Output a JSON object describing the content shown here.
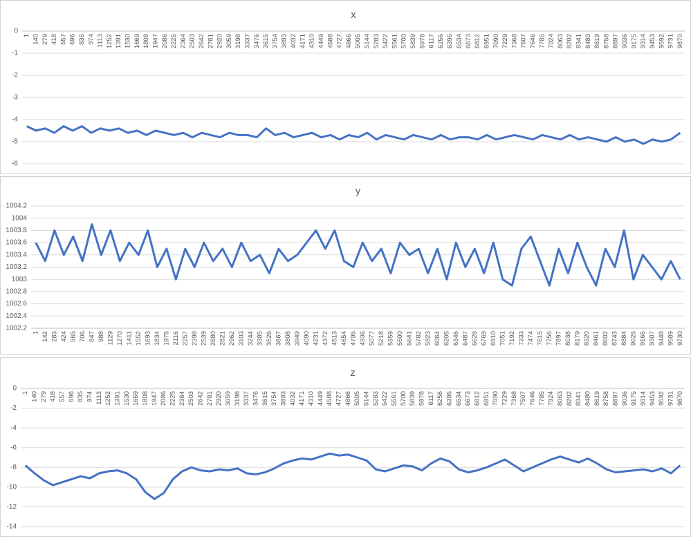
{
  "chart_data": [
    {
      "type": "line",
      "title": "x",
      "categories": [
        1,
        140,
        279,
        418,
        557,
        696,
        835,
        974,
        1113,
        1252,
        1391,
        1530,
        1669,
        1808,
        1947,
        2086,
        2225,
        2364,
        2503,
        2642,
        2781,
        2920,
        3059,
        3198,
        3337,
        3476,
        3615,
        3754,
        3893,
        4032,
        4171,
        4310,
        4449,
        4588,
        4727,
        4866,
        5005,
        5144,
        5283,
        5422,
        5561,
        5700,
        5839,
        5978,
        6117,
        6256,
        6395,
        6534,
        6673,
        6812,
        6951,
        7090,
        7229,
        7368,
        7507,
        7646,
        7785,
        7924,
        8063,
        8202,
        8341,
        8480,
        8619,
        8758,
        8897,
        9036,
        9175,
        9314,
        9453,
        9592,
        9731,
        9870
      ],
      "color": "#4472c4",
      "values": [
        -4.3,
        -4.5,
        -4.4,
        -4.6,
        -4.3,
        -4.5,
        -4.3,
        -4.6,
        -4.4,
        -4.5,
        -4.4,
        -4.6,
        -4.5,
        -4.7,
        -4.5,
        -4.6,
        -4.7,
        -4.6,
        -4.8,
        -4.6,
        -4.7,
        -4.8,
        -4.6,
        -4.7,
        -4.7,
        -4.8,
        -4.4,
        -4.7,
        -4.6,
        -4.8,
        -4.7,
        -4.6,
        -4.8,
        -4.7,
        -4.9,
        -4.7,
        -4.8,
        -4.6,
        -4.9,
        -4.7,
        -4.8,
        -4.9,
        -4.7,
        -4.8,
        -4.9,
        -4.7,
        -4.9,
        -4.8,
        -4.8,
        -4.9,
        -4.7,
        -4.9,
        -4.8,
        -4.7,
        -4.8,
        -4.9,
        -4.7,
        -4.8,
        -4.9,
        -4.7,
        -4.9,
        -4.8,
        -4.9,
        -5.0,
        -4.8,
        -5.0,
        -4.9,
        -5.1,
        -4.9,
        -5.0,
        -4.9,
        -4.6
      ],
      "ylim": [
        -6,
        0
      ],
      "yticks": [
        0,
        -1,
        -2,
        -3,
        -4,
        -5,
        -6
      ],
      "grid": true
    },
    {
      "type": "line",
      "title": "y",
      "categories": [
        1,
        142,
        283,
        424,
        565,
        706,
        847,
        988,
        1129,
        1270,
        1411,
        1552,
        1693,
        1834,
        1975,
        2116,
        2257,
        2398,
        2539,
        2680,
        2821,
        2962,
        3103,
        3244,
        3385,
        3526,
        3667,
        3808,
        3949,
        4090,
        4231,
        4372,
        4513,
        4654,
        4795,
        4936,
        5077,
        5218,
        5359,
        5500,
        5641,
        5782,
        5923,
        6064,
        6205,
        6346,
        6487,
        6628,
        6769,
        6910,
        7051,
        7192,
        7333,
        7474,
        7615,
        7756,
        7897,
        8038,
        8179,
        8320,
        8461,
        8602,
        8743,
        8884,
        9025,
        9166,
        9307,
        9448,
        9589,
        9730
      ],
      "color": "#4472c4",
      "values": [
        1003.6,
        1003.3,
        1003.8,
        1003.4,
        1003.7,
        1003.3,
        1003.9,
        1003.4,
        1003.8,
        1003.3,
        1003.6,
        1003.4,
        1003.8,
        1003.2,
        1003.5,
        1003.0,
        1003.5,
        1003.2,
        1003.6,
        1003.3,
        1003.5,
        1003.2,
        1003.6,
        1003.3,
        1003.4,
        1003.1,
        1003.5,
        1003.3,
        1003.4,
        1003.6,
        1003.8,
        1003.5,
        1003.8,
        1003.3,
        1003.2,
        1003.6,
        1003.3,
        1003.5,
        1003.1,
        1003.6,
        1003.4,
        1003.5,
        1003.1,
        1003.5,
        1003.0,
        1003.6,
        1003.2,
        1003.5,
        1003.1,
        1003.6,
        1003.0,
        1002.9,
        1003.5,
        1003.7,
        1003.3,
        1002.9,
        1003.5,
        1003.1,
        1003.6,
        1003.2,
        1002.9,
        1003.5,
        1003.2,
        1003.8,
        1003.0,
        1003.4,
        1003.2,
        1003.0,
        1003.3,
        1003.0
      ],
      "ylim": [
        1002.2,
        1004.2
      ],
      "yticks": [
        1004.2,
        1004,
        1003.8,
        1003.6,
        1003.4,
        1003.2,
        1003,
        1002.8,
        1002.6,
        1002.4,
        1002.2
      ],
      "grid": true
    },
    {
      "type": "line",
      "title": "z",
      "categories": [
        1,
        140,
        279,
        418,
        557,
        696,
        835,
        974,
        1113,
        1252,
        1391,
        1530,
        1669,
        1808,
        1947,
        2086,
        2225,
        2364,
        2503,
        2642,
        2781,
        2920,
        3059,
        3198,
        3337,
        3476,
        3615,
        3754,
        3893,
        4032,
        4171,
        4310,
        4449,
        4588,
        4727,
        4866,
        5005,
        5144,
        5283,
        5422,
        5561,
        5700,
        5839,
        5978,
        6117,
        6256,
        6395,
        6534,
        6673,
        6812,
        6951,
        7090,
        7229,
        7368,
        7507,
        7646,
        7785,
        7924,
        8063,
        8202,
        8341,
        8480,
        8619,
        8758,
        8897,
        9036,
        9175,
        9314,
        9453,
        9592,
        9731,
        9870
      ],
      "color": "#4472c4",
      "values": [
        -7.8,
        -8.6,
        -9.3,
        -9.8,
        -9.5,
        -9.2,
        -8.9,
        -9.1,
        -8.6,
        -8.4,
        -8.3,
        -8.6,
        -9.2,
        -10.5,
        -11.2,
        -10.6,
        -9.2,
        -8.4,
        -8.0,
        -8.3,
        -8.4,
        -8.2,
        -8.3,
        -8.1,
        -8.6,
        -8.7,
        -8.5,
        -8.1,
        -7.6,
        -7.3,
        -7.1,
        -7.2,
        -6.9,
        -6.6,
        -6.8,
        -6.7,
        -7.0,
        -7.3,
        -8.2,
        -8.4,
        -8.1,
        -7.8,
        -7.9,
        -8.3,
        -7.6,
        -7.1,
        -7.4,
        -8.2,
        -8.5,
        -8.3,
        -8.0,
        -7.6,
        -7.2,
        -7.8,
        -8.4,
        -8.0,
        -7.6,
        -7.2,
        -6.9,
        -7.2,
        -7.5,
        -7.1,
        -7.6,
        -8.2,
        -8.5,
        -8.4,
        -8.3,
        -8.2,
        -8.4,
        -8.1,
        -8.6,
        -7.8
      ],
      "ylim": [
        -14,
        0
      ],
      "yticks": [
        0,
        -2,
        -4,
        -6,
        -8,
        -10,
        -12,
        -14
      ],
      "grid": true
    }
  ]
}
